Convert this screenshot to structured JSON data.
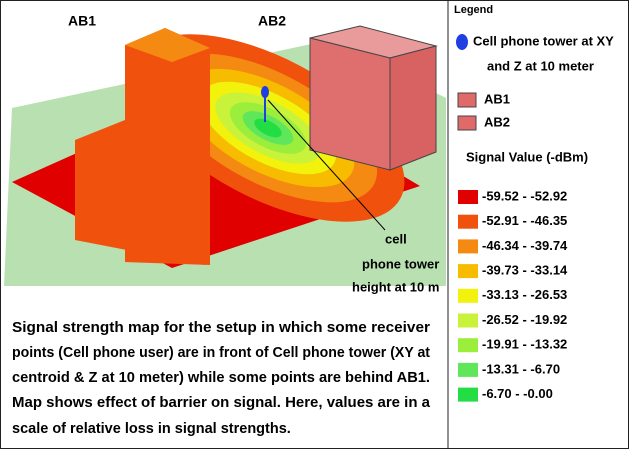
{
  "labels": {
    "ab1": "AB1",
    "ab2": "AB2",
    "tower": [
      "cell",
      "phone tower",
      "height at 10 m"
    ]
  },
  "legend": {
    "title": "Legend",
    "tower": {
      "lines": [
        "Cell phone tower at XY",
        "and Z at 10 meter"
      ],
      "color": "#1f3fe0"
    },
    "buildings": [
      {
        "label": "AB1",
        "color": "#e06a6a"
      },
      {
        "label": "AB2",
        "color": "#e06a6a"
      }
    ],
    "signal_title": "Signal Value (-dBm)",
    "ranges": [
      {
        "label": "-59.52 -  -52.92",
        "color": "#e00000"
      },
      {
        "label": "-52.91 -  -46.35",
        "color": "#f0520e"
      },
      {
        "label": "-46.34 -  -39.74",
        "color": "#f58a12"
      },
      {
        "label": "-39.73 -  -33.14",
        "color": "#f7bb00"
      },
      {
        "label": "-33.13 -  -26.53",
        "color": "#f2f20c"
      },
      {
        "label": "-26.52 -  -19.92",
        "color": "#c9f23a"
      },
      {
        "label": "-19.91 -  -13.32",
        "color": "#9cee3c"
      },
      {
        "label": "-13.31 -  -6.70",
        "color": "#60e65a"
      },
      {
        "label": "-6.70 -  -0.00",
        "color": "#22dd44"
      }
    ]
  },
  "caption": [
    "Signal strength map for the setup in which some receiver",
    "points (Cell phone user) are in front of Cell phone tower (XY at",
    "centroid & Z at 10 meter) while some points are behind AB1.",
    "Map shows effect of barrier on signal. Here, values are in a",
    "scale of relative loss in signal strengths."
  ]
}
